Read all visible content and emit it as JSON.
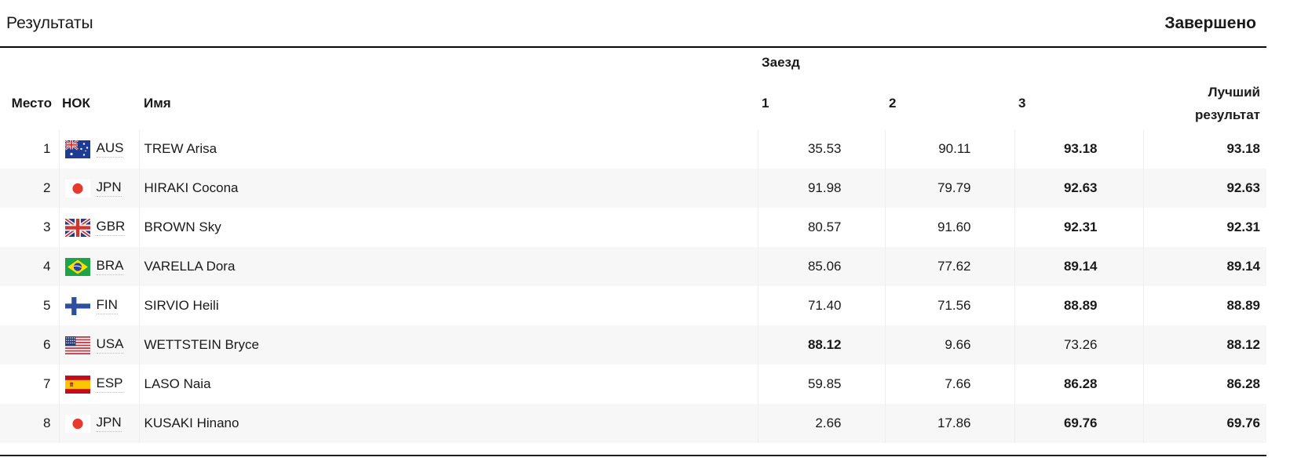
{
  "header": {
    "title": "Результаты",
    "status": "Завершено"
  },
  "colors": {
    "stripe": "#f7f7f7",
    "rule": "#0a0a0a",
    "text": "#1a1a1a"
  },
  "table": {
    "group_header": {
      "run_group": "Заезд"
    },
    "columns": {
      "place": "Место",
      "noc": "НОК",
      "name": "Имя",
      "runs": [
        "1",
        "2",
        "3"
      ],
      "best": "Лучший результат"
    },
    "rows": [
      {
        "place": "1",
        "noc": "AUS",
        "flag": "aus-flag-icon",
        "name": "TREW Arisa",
        "runs": [
          {
            "value": "35.53",
            "best": false
          },
          {
            "value": "90.11",
            "best": false
          },
          {
            "value": "93.18",
            "best": true
          }
        ],
        "best": "93.18"
      },
      {
        "place": "2",
        "noc": "JPN",
        "flag": "jpn-flag-icon",
        "name": "HIRAKI Cocona",
        "runs": [
          {
            "value": "91.98",
            "best": false
          },
          {
            "value": "79.79",
            "best": false
          },
          {
            "value": "92.63",
            "best": true
          }
        ],
        "best": "92.63"
      },
      {
        "place": "3",
        "noc": "GBR",
        "flag": "gbr-flag-icon",
        "name": "BROWN Sky",
        "runs": [
          {
            "value": "80.57",
            "best": false
          },
          {
            "value": "91.60",
            "best": false
          },
          {
            "value": "92.31",
            "best": true
          }
        ],
        "best": "92.31"
      },
      {
        "place": "4",
        "noc": "BRA",
        "flag": "bra-flag-icon",
        "name": "VARELLA Dora",
        "runs": [
          {
            "value": "85.06",
            "best": false
          },
          {
            "value": "77.62",
            "best": false
          },
          {
            "value": "89.14",
            "best": true
          }
        ],
        "best": "89.14"
      },
      {
        "place": "5",
        "noc": "FIN",
        "flag": "fin-flag-icon",
        "name": "SIRVIO Heili",
        "runs": [
          {
            "value": "71.40",
            "best": false
          },
          {
            "value": "71.56",
            "best": false
          },
          {
            "value": "88.89",
            "best": true
          }
        ],
        "best": "88.89"
      },
      {
        "place": "6",
        "noc": "USA",
        "flag": "usa-flag-icon",
        "name": "WETTSTEIN Bryce",
        "runs": [
          {
            "value": "88.12",
            "best": true
          },
          {
            "value": "9.66",
            "best": false
          },
          {
            "value": "73.26",
            "best": false
          }
        ],
        "best": "88.12"
      },
      {
        "place": "7",
        "noc": "ESP",
        "flag": "esp-flag-icon",
        "name": "LASO Naia",
        "runs": [
          {
            "value": "59.85",
            "best": false
          },
          {
            "value": "7.66",
            "best": false
          },
          {
            "value": "86.28",
            "best": true
          }
        ],
        "best": "86.28"
      },
      {
        "place": "8",
        "noc": "JPN",
        "flag": "jpn-flag-icon",
        "name": "KUSAKI Hinano",
        "runs": [
          {
            "value": "2.66",
            "best": false
          },
          {
            "value": "17.86",
            "best": false
          },
          {
            "value": "69.76",
            "best": true
          }
        ],
        "best": "69.76"
      }
    ]
  }
}
